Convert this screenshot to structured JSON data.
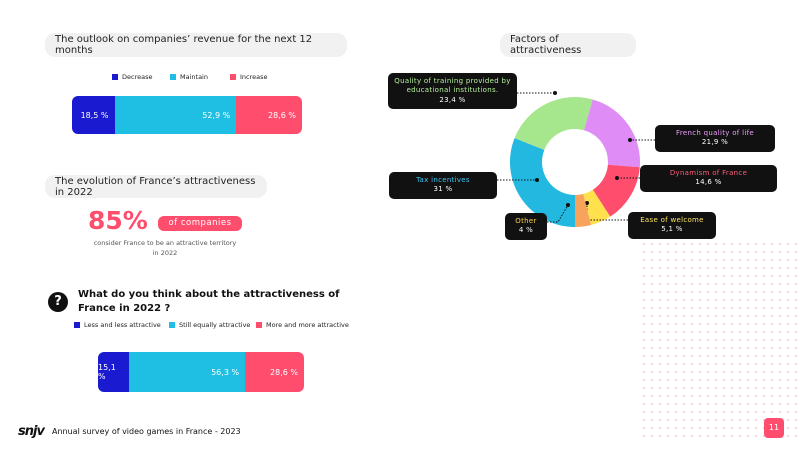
{
  "chart_data": [
    {
      "type": "bar",
      "title": "The outlook on companies’ revenue for the next 12 months",
      "series": [
        {
          "name": "Decrease",
          "color": "#1a1ad0",
          "values": [
            18.5
          ],
          "value_labels": [
            "18,5 %"
          ]
        },
        {
          "name": "Maintain",
          "color": "#1fbfe3",
          "values": [
            52.9
          ],
          "value_labels": [
            "52,9 %"
          ]
        },
        {
          "name": "Increase",
          "color": "#ff4d6d",
          "values": [
            28.6
          ],
          "value_labels": [
            "28,6 %"
          ]
        }
      ]
    },
    {
      "type": "bar",
      "title": "What do you think about the attractiveness of France in 2022 ?",
      "series": [
        {
          "name": "Less and less attractive",
          "color": "#1a1ad0",
          "values": [
            15.1
          ],
          "value_labels": [
            "15,1 %"
          ]
        },
        {
          "name": "Still equally attractive",
          "color": "#1fbfe3",
          "values": [
            56.3
          ],
          "value_labels": [
            "56,3 %"
          ]
        },
        {
          "name": "More and more attractive",
          "color": "#ff4d6d",
          "values": [
            28.6
          ],
          "value_labels": [
            "28,6 %"
          ]
        }
      ]
    },
    {
      "type": "pie",
      "title": "Factors of attractiveness",
      "categories": [
        "Tax incentives",
        "Quality of training provided by educational institutions.",
        "French quality of life",
        "Dynamism of France",
        "Ease of welcome",
        "Other"
      ],
      "values": [
        31,
        23.4,
        21.9,
        14.6,
        5.1,
        4
      ],
      "value_labels": [
        "31 %",
        "23,4 %",
        "21,9 %",
        "14,6 %",
        "5,1 %",
        "4 %"
      ],
      "colors": [
        "#22b8e0",
        "#a6e68c",
        "#e08cf6",
        "#ff4d6d",
        "#ffe14d",
        "#f7a35c"
      ],
      "label_colors": [
        "#3cc6f0",
        "#b6f29a",
        "#f09cff",
        "#ff5a78",
        "#ffe65c",
        "#ffd24d"
      ]
    }
  ],
  "evolution": {
    "title": "The evolution of France’s attractiveness in 2022",
    "figure": "85%",
    "tag": "of companies",
    "caption": "consider France to be an attractive territory in 2022"
  },
  "footer": {
    "logo": "snjv",
    "text": "Annual survey of video games in France - 2023",
    "page": "11"
  }
}
